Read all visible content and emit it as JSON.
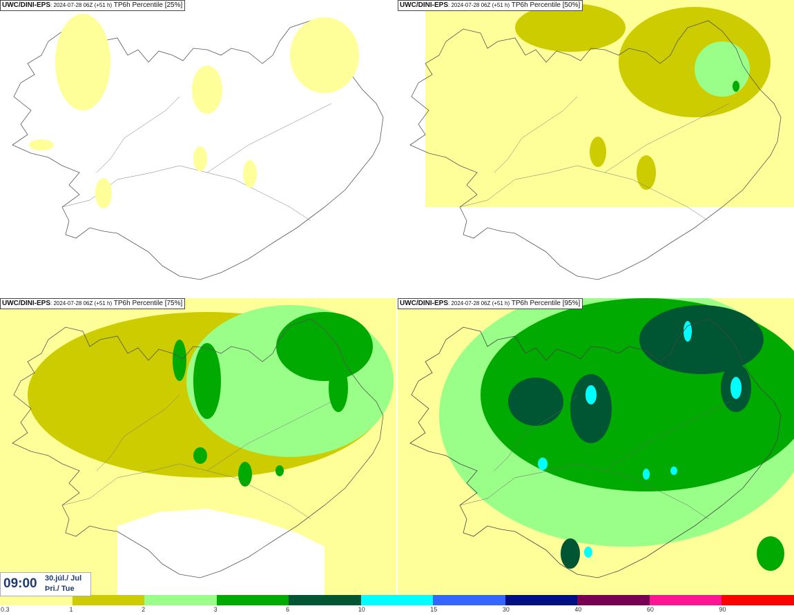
{
  "colors": [
    "#ffff99",
    "#cccc00",
    "#99ff88",
    "#00aa00",
    "#005533",
    "#00ffff",
    "#3366ff",
    "#001080",
    "#770055",
    "#ff1493",
    "#ff0000"
  ],
  "panels": [
    {
      "model": "UWC/DINI-EPS",
      "meta": ": 2024-07-28 06Z (+51 h)",
      "product": " TP6h Percentile [25%]"
    },
    {
      "model": "UWC/DINI-EPS",
      "meta": ": 2024-07-28 06Z (+51 h)",
      "product": " TP6h Percentile [50%]"
    },
    {
      "model": "UWC/DINI-EPS",
      "meta": ": 2024-07-28 06Z (+51 h)",
      "product": " TP6h Percentile [75%]"
    },
    {
      "model": "UWC/DINI-EPS",
      "meta": ": 2024-07-28 06Z (+51 h)",
      "product": " TP6h Percentile [95%]"
    }
  ],
  "clock": {
    "time": "09:00",
    "date": "30.júl./ Jul",
    "day": "Þri./ Tue"
  },
  "legend": {
    "labels": [
      "0.3",
      "1",
      "2",
      "3",
      "6",
      "10",
      "15",
      "30",
      "40",
      "60",
      "90"
    ]
  }
}
